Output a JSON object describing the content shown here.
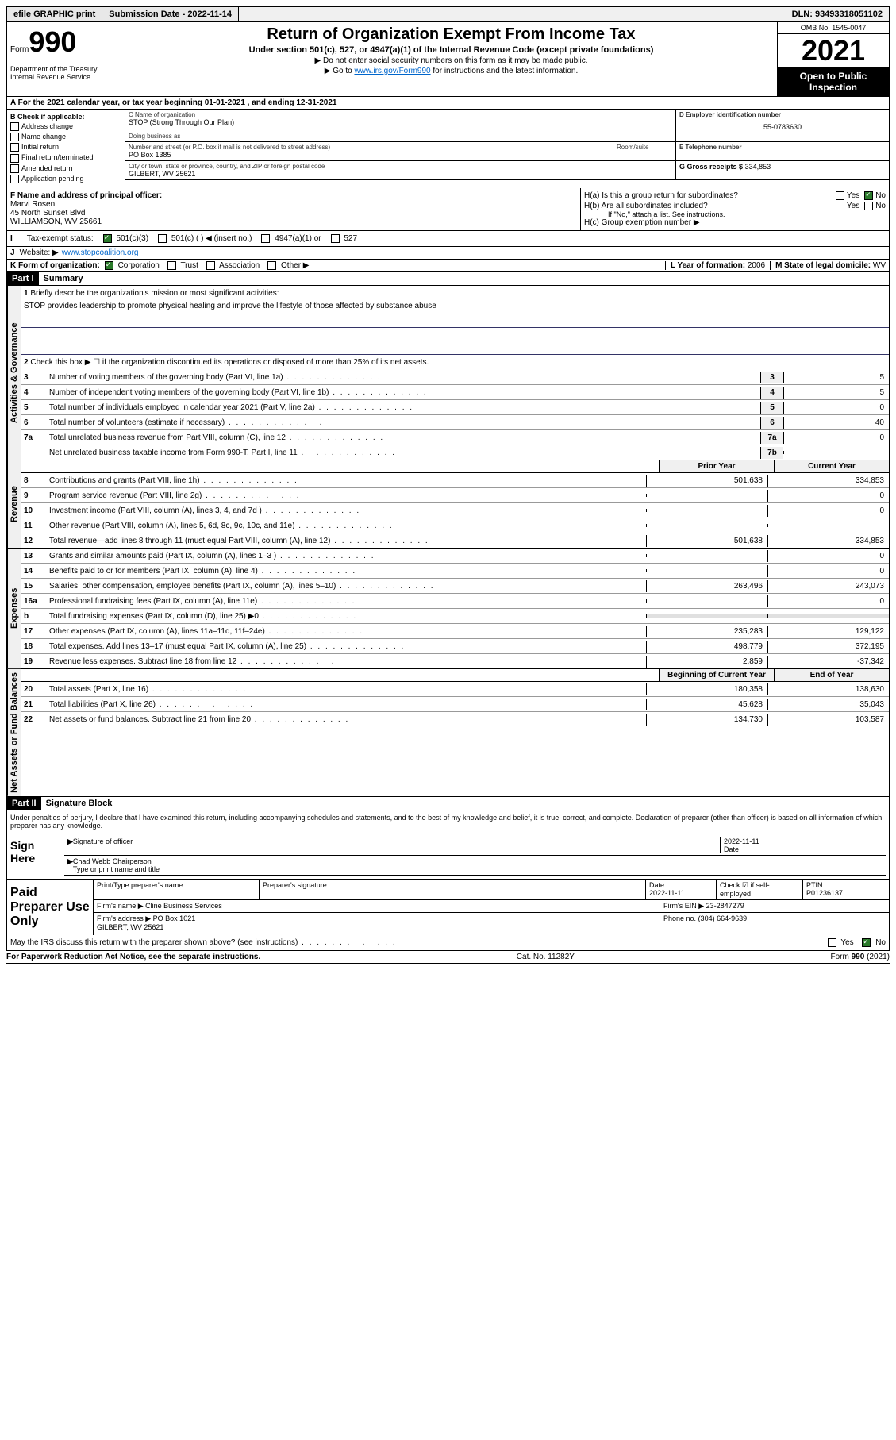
{
  "topbar": {
    "efile": "efile GRAPHIC print",
    "submission": "Submission Date - 2022-11-14",
    "dln": "DLN: 93493318051102"
  },
  "header": {
    "form_prefix": "Form",
    "form_number": "990",
    "title": "Return of Organization Exempt From Income Tax",
    "subtitle": "Under section 501(c), 527, or 4947(a)(1) of the Internal Revenue Code (except private foundations)",
    "note1": "▶ Do not enter social security numbers on this form as it may be made public.",
    "note2_prefix": "▶ Go to ",
    "note2_link": "www.irs.gov/Form990",
    "note2_suffix": " for instructions and the latest information.",
    "dept": "Department of the Treasury Internal Revenue Service",
    "omb": "OMB No. 1545-0047",
    "year": "2021",
    "open_public": "Open to Public Inspection"
  },
  "period": {
    "text": "For the 2021 calendar year, or tax year beginning 01-01-2021 , and ending 12-31-2021"
  },
  "box_b": {
    "label": "B Check if applicable:",
    "items": [
      "Address change",
      "Name change",
      "Initial return",
      "Final return/terminated",
      "Amended return",
      "Application pending"
    ]
  },
  "box_c": {
    "name_label": "C Name of organization",
    "name": "STOP (Strong Through Our Plan)",
    "dba_label": "Doing business as",
    "addr_label": "Number and street (or P.O. box if mail is not delivered to street address)",
    "addr": "PO Box 1385",
    "room_label": "Room/suite",
    "city_label": "City or town, state or province, country, and ZIP or foreign postal code",
    "city": "GILBERT, WV  25621"
  },
  "box_d": {
    "label": "D Employer identification number",
    "ein": "55-0783630"
  },
  "box_e": {
    "label": "E Telephone number"
  },
  "box_g": {
    "label": "G Gross receipts $",
    "value": "334,853"
  },
  "box_f": {
    "label": "F Name and address of principal officer:",
    "name": "Marvi Rosen",
    "addr1": "45 North Sunset Blvd",
    "addr2": "WILLIAMSON, WV  25661"
  },
  "box_h": {
    "a_label": "H(a) Is this a group return for subordinates?",
    "b_label": "H(b) Are all subordinates included?",
    "b_note": "If \"No,\" attach a list. See instructions.",
    "c_label": "H(c) Group exemption number ▶",
    "yes": "Yes",
    "no": "No"
  },
  "box_i": {
    "label": "Tax-exempt status:",
    "opt1": "501(c)(3)",
    "opt2": "501(c) (   ) ◀ (insert no.)",
    "opt3": "4947(a)(1) or",
    "opt4": "527"
  },
  "box_j": {
    "label": "Website: ▶",
    "value": "www.stopcoalition.org"
  },
  "box_k": {
    "label": "K Form of organization:",
    "opts": [
      "Corporation",
      "Trust",
      "Association",
      "Other ▶"
    ]
  },
  "box_l": {
    "label": "L Year of formation:",
    "value": "2006"
  },
  "box_m": {
    "label": "M State of legal domicile:",
    "value": "WV"
  },
  "part1": {
    "header": "Part I",
    "title": "Summary",
    "vert_activities": "Activities & Governance",
    "vert_revenue": "Revenue",
    "vert_expenses": "Expenses",
    "vert_netassets": "Net Assets or Fund Balances",
    "line1_label": "Briefly describe the organization's mission or most significant activities:",
    "mission": "STOP provides leadership to promote physical healing and improve the lifestyle of those affected by substance abuse",
    "line2": "Check this box ▶ ☐ if the organization discontinued its operations or disposed of more than 25% of its net assets.",
    "lines_gov": [
      {
        "n": "3",
        "desc": "Number of voting members of the governing body (Part VI, line 1a)",
        "box": "3",
        "val": "5"
      },
      {
        "n": "4",
        "desc": "Number of independent voting members of the governing body (Part VI, line 1b)",
        "box": "4",
        "val": "5"
      },
      {
        "n": "5",
        "desc": "Total number of individuals employed in calendar year 2021 (Part V, line 2a)",
        "box": "5",
        "val": "0"
      },
      {
        "n": "6",
        "desc": "Total number of volunteers (estimate if necessary)",
        "box": "6",
        "val": "40"
      },
      {
        "n": "7a",
        "desc": "Total unrelated business revenue from Part VIII, column (C), line 12",
        "box": "7a",
        "val": "0"
      },
      {
        "n": "",
        "desc": "Net unrelated business taxable income from Form 990-T, Part I, line 11",
        "box": "7b",
        "val": ""
      }
    ],
    "col_prior": "Prior Year",
    "col_current": "Current Year",
    "col_begin": "Beginning of Current Year",
    "col_end": "End of Year",
    "lines_rev": [
      {
        "n": "8",
        "desc": "Contributions and grants (Part VIII, line 1h)",
        "prior": "501,638",
        "curr": "334,853"
      },
      {
        "n": "9",
        "desc": "Program service revenue (Part VIII, line 2g)",
        "prior": "",
        "curr": "0"
      },
      {
        "n": "10",
        "desc": "Investment income (Part VIII, column (A), lines 3, 4, and 7d )",
        "prior": "",
        "curr": "0"
      },
      {
        "n": "11",
        "desc": "Other revenue (Part VIII, column (A), lines 5, 6d, 8c, 9c, 10c, and 11e)",
        "prior": "",
        "curr": ""
      },
      {
        "n": "12",
        "desc": "Total revenue—add lines 8 through 11 (must equal Part VIII, column (A), line 12)",
        "prior": "501,638",
        "curr": "334,853"
      }
    ],
    "lines_exp": [
      {
        "n": "13",
        "desc": "Grants and similar amounts paid (Part IX, column (A), lines 1–3 )",
        "prior": "",
        "curr": "0"
      },
      {
        "n": "14",
        "desc": "Benefits paid to or for members (Part IX, column (A), line 4)",
        "prior": "",
        "curr": "0"
      },
      {
        "n": "15",
        "desc": "Salaries, other compensation, employee benefits (Part IX, column (A), lines 5–10)",
        "prior": "263,496",
        "curr": "243,073"
      },
      {
        "n": "16a",
        "desc": "Professional fundraising fees (Part IX, column (A), line 11e)",
        "prior": "",
        "curr": "0"
      },
      {
        "n": "b",
        "desc": "Total fundraising expenses (Part IX, column (D), line 25) ▶0",
        "prior": "",
        "curr": "",
        "gray": true
      },
      {
        "n": "17",
        "desc": "Other expenses (Part IX, column (A), lines 11a–11d, 11f–24e)",
        "prior": "235,283",
        "curr": "129,122"
      },
      {
        "n": "18",
        "desc": "Total expenses. Add lines 13–17 (must equal Part IX, column (A), line 25)",
        "prior": "498,779",
        "curr": "372,195"
      },
      {
        "n": "19",
        "desc": "Revenue less expenses. Subtract line 18 from line 12",
        "prior": "2,859",
        "curr": "-37,342"
      }
    ],
    "lines_net": [
      {
        "n": "20",
        "desc": "Total assets (Part X, line 16)",
        "prior": "180,358",
        "curr": "138,630"
      },
      {
        "n": "21",
        "desc": "Total liabilities (Part X, line 26)",
        "prior": "45,628",
        "curr": "35,043"
      },
      {
        "n": "22",
        "desc": "Net assets or fund balances. Subtract line 21 from line 20",
        "prior": "134,730",
        "curr": "103,587"
      }
    ]
  },
  "part2": {
    "header": "Part II",
    "title": "Signature Block",
    "declaration": "Under penalties of perjury, I declare that I have examined this return, including accompanying schedules and statements, and to the best of my knowledge and belief, it is true, correct, and complete. Declaration of preparer (other than officer) is based on all information of which preparer has any knowledge.",
    "sign_here": "Sign Here",
    "sig_officer": "Signature of officer",
    "sig_date": "Date",
    "sig_date_val": "2022-11-11",
    "officer_name": "Chad Webb  Chairperson",
    "officer_label": "Type or print name and title",
    "paid_prep": "Paid Preparer Use Only",
    "prep_name_label": "Print/Type preparer's name",
    "prep_sig_label": "Preparer's signature",
    "prep_date_label": "Date",
    "prep_date": "2022-11-11",
    "prep_check_label": "Check ☑ if self-employed",
    "ptin_label": "PTIN",
    "ptin": "P01236137",
    "firm_name_label": "Firm's name   ▶",
    "firm_name": "Cline Business Services",
    "firm_ein_label": "Firm's EIN ▶",
    "firm_ein": "23-2847279",
    "firm_addr_label": "Firm's address ▶",
    "firm_addr": "PO Box 1021",
    "firm_city": "GILBERT, WV  25621",
    "phone_label": "Phone no.",
    "phone": "(304) 664-9639",
    "discuss": "May the IRS discuss this return with the preparer shown above? (see instructions)"
  },
  "footer": {
    "paperwork": "For Paperwork Reduction Act Notice, see the separate instructions.",
    "cat": "Cat. No. 11282Y",
    "form": "Form 990 (2021)"
  }
}
